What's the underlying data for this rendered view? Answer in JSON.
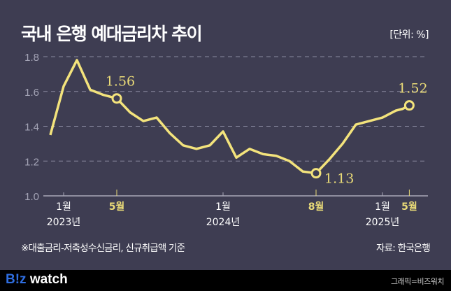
{
  "header": {
    "title": "국내 은행 예대금리차 추이",
    "unit": "[단위: %]"
  },
  "footnote": "※대출금리-저축성수신금리, 신규취급액 기준",
  "source": "자료: 한국은행",
  "footer": {
    "logo_b": "B!z",
    "logo_rest": " watch",
    "credit": "그래픽=비즈워치"
  },
  "colors": {
    "line": "#f3e37c",
    "highlight": "#eadb78",
    "grid": "#8a8aa0",
    "axis_text": "#a3a3b5"
  },
  "chart_data": {
    "type": "line",
    "title": "국내 은행 예대금리차 추이",
    "xlabel": "",
    "ylabel": "%",
    "ylim": [
      1.0,
      1.8
    ],
    "yticks": [
      "1.0",
      "1.2",
      "1.4",
      "1.6",
      "1.8"
    ],
    "grid": true,
    "x": [
      "2022-12",
      "2023-01",
      "2023-02",
      "2023-03",
      "2023-04",
      "2023-05",
      "2023-06",
      "2023-07",
      "2023-08",
      "2023-09",
      "2023-10",
      "2023-11",
      "2023-12",
      "2024-01",
      "2024-02",
      "2024-03",
      "2024-04",
      "2024-05",
      "2024-06",
      "2024-07",
      "2024-08",
      "2024-09",
      "2024-10",
      "2024-11",
      "2024-12",
      "2025-01",
      "2025-02",
      "2025-03",
      "2025-04",
      "2025-05"
    ],
    "values": [
      1.35,
      1.63,
      1.78,
      1.61,
      1.58,
      1.56,
      1.48,
      1.43,
      1.45,
      1.36,
      1.29,
      1.27,
      1.29,
      1.37,
      1.22,
      1.27,
      1.24,
      1.23,
      1.2,
      1.14,
      1.13,
      1.21,
      1.3,
      1.41,
      1.43,
      1.45,
      1.47,
      1.49,
      1.5,
      1.52
    ],
    "xticks": [
      {
        "index": 1,
        "month": "1월",
        "year": "2023년",
        "highlight": false
      },
      {
        "index": 5,
        "month": "5월",
        "year": "",
        "highlight": true
      },
      {
        "index": 13,
        "month": "1월",
        "year": "2024년",
        "highlight": false
      },
      {
        "index": 20,
        "month": "8월",
        "year": "",
        "highlight": true
      },
      {
        "index": 25,
        "month": "1월",
        "year": "2025년",
        "highlight": false
      },
      {
        "index": 29,
        "month": "5월",
        "year": "",
        "highlight": true
      }
    ],
    "annotations": [
      {
        "index": 5,
        "text": "1.56",
        "pos": "above"
      },
      {
        "index": 20,
        "text": "1.13",
        "pos": "right"
      },
      {
        "index": 29,
        "text": "1.52",
        "pos": "above"
      }
    ]
  }
}
